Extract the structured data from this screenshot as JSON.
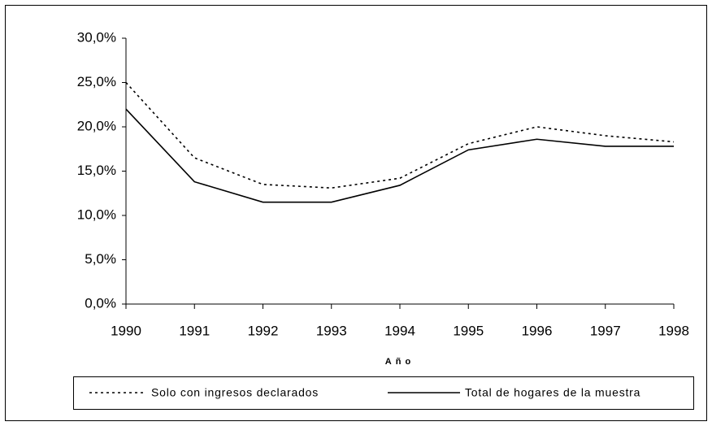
{
  "chart_data": {
    "type": "line",
    "x_label": "Año",
    "x": [
      1990,
      1991,
      1992,
      1993,
      1994,
      1995,
      1996,
      1997,
      1998
    ],
    "xlim": [
      1990,
      1998
    ],
    "xticks": [
      1990,
      1991,
      1992,
      1993,
      1994,
      1995,
      1996,
      1997,
      1998
    ],
    "ylim": [
      0,
      30
    ],
    "yticks": [
      {
        "value": 0,
        "label": "0,0%"
      },
      {
        "value": 5,
        "label": "5,0%"
      },
      {
        "value": 10,
        "label": "10,0%"
      },
      {
        "value": 15,
        "label": "15,0%"
      },
      {
        "value": 20,
        "label": "20,0%"
      },
      {
        "value": 25,
        "label": "25,0%"
      },
      {
        "value": 30,
        "label": "30,0%"
      }
    ],
    "grid": false,
    "legend": "bottom",
    "series": [
      {
        "name": "Solo con ingresos declarados",
        "color": "#000000",
        "style": "dotted",
        "values": [
          25.0,
          16.5,
          13.5,
          13.1,
          14.2,
          18.1,
          20.0,
          19.0,
          18.3
        ]
      },
      {
        "name": "Total de hogares de la muestra",
        "color": "#000000",
        "style": "solid",
        "values": [
          22.0,
          13.8,
          11.5,
          11.5,
          13.4,
          17.4,
          18.6,
          17.8,
          17.8
        ]
      }
    ]
  }
}
